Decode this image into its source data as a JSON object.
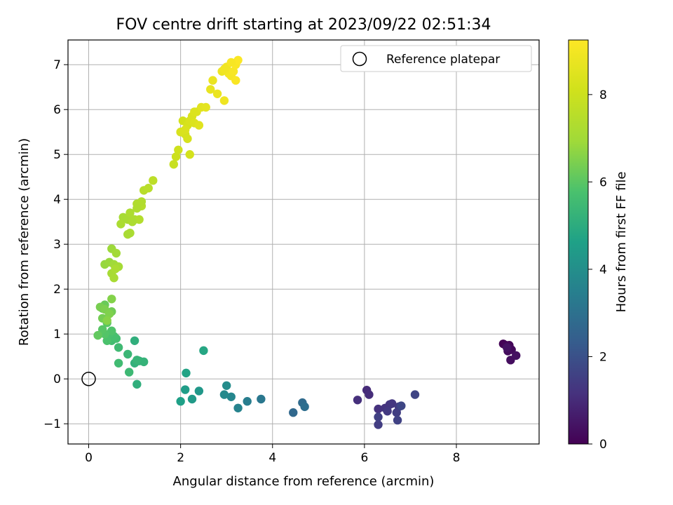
{
  "chart_data": {
    "type": "scatter",
    "title": "FOV centre drift starting at 2023/09/22 02:51:34",
    "xlabel": "Angular distance from reference (arcmin)",
    "ylabel": "Rotation from reference (arcmin)",
    "xlim": [
      -0.45,
      9.8
    ],
    "ylim": [
      -1.45,
      7.55
    ],
    "xticks": [
      0,
      2,
      4,
      6,
      8
    ],
    "yticks": [
      -1,
      0,
      1,
      2,
      3,
      4,
      5,
      6,
      7
    ],
    "grid": true,
    "legend": {
      "position": "top-right",
      "entries": [
        "Reference platepar"
      ]
    },
    "reference_point": {
      "x": 0,
      "y": 0
    },
    "colorbar": {
      "label": "Hours from first FF file",
      "min": 0,
      "max": 9.25,
      "ticks": [
        0,
        2,
        4,
        6,
        8
      ],
      "colormap": "viridis"
    },
    "series": [
      {
        "x": [
          9.02,
          9.08,
          9.15,
          9.2,
          9.12,
          9.18,
          9.3,
          9.1,
          6.05,
          6.1,
          5.85,
          6.3,
          6.45,
          6.55,
          6.6,
          6.5,
          6.75,
          6.3,
          6.7,
          6.3,
          6.72,
          7.1,
          6.8,
          4.45,
          4.65,
          4.7,
          3.75,
          3.45,
          3.25,
          3.1,
          2.95,
          3.0,
          2.4,
          2.25,
          2.1,
          2.0,
          2.12,
          2.5,
          1.05,
          1.0,
          1.1,
          1.2,
          1.05,
          0.85,
          0.88,
          0.65,
          0.65,
          0.5,
          0.6,
          0.55,
          0.45,
          0.4,
          0.5,
          0.35,
          0.3,
          0.4,
          0.2,
          0.3,
          0.35,
          0.45,
          0.5,
          0.3,
          0.25,
          0.35,
          0.45,
          0.5,
          0.4,
          0.35,
          0.45,
          0.5,
          0.55,
          0.6,
          0.65,
          0.5,
          0.55,
          0.58,
          0.75,
          0.85,
          0.9,
          0.9,
          1.0,
          1.05,
          1.1,
          1.15,
          1.2,
          1.3,
          1.4,
          0.7,
          0.95,
          1.05,
          1.15,
          1.0,
          0.85,
          1.85,
          1.9,
          1.95,
          2.0,
          2.05,
          2.1,
          2.15,
          2.2,
          2.25,
          2.3,
          2.35,
          2.4,
          2.45,
          2.55,
          2.2,
          2.15,
          2.0,
          2.3,
          2.1,
          2.65,
          2.7,
          2.8,
          2.9,
          2.95,
          3.0,
          3.05,
          3.1,
          3.15,
          3.2,
          3.25,
          2.95,
          3.1,
          3.2
        ],
        "y": [
          0.78,
          0.75,
          0.75,
          0.65,
          0.62,
          0.42,
          0.52,
          0.7,
          -0.25,
          -0.35,
          -0.47,
          -0.67,
          -0.65,
          -0.57,
          -0.55,
          -0.72,
          -0.62,
          -1.02,
          -0.75,
          -0.85,
          -0.92,
          -0.35,
          -0.6,
          -0.75,
          -0.53,
          -0.62,
          -0.45,
          -0.5,
          -0.65,
          -0.4,
          -0.35,
          -0.15,
          -0.27,
          -0.45,
          -0.24,
          -0.5,
          0.13,
          0.63,
          -0.12,
          0.35,
          0.4,
          0.38,
          0.42,
          0.55,
          0.15,
          0.7,
          0.35,
          0.85,
          0.9,
          0.95,
          1.0,
          0.85,
          1.07,
          1.0,
          1.1,
          1.25,
          0.97,
          1.57,
          1.65,
          1.45,
          1.5,
          1.35,
          1.6,
          1.55,
          1.45,
          1.78,
          1.3,
          2.55,
          2.6,
          2.9,
          2.55,
          2.8,
          2.5,
          2.35,
          2.25,
          2.45,
          3.6,
          3.55,
          3.25,
          3.7,
          3.55,
          3.9,
          3.55,
          3.85,
          4.2,
          4.25,
          4.42,
          3.45,
          3.5,
          3.8,
          3.95,
          0.85,
          3.22,
          4.78,
          4.95,
          5.1,
          5.5,
          5.75,
          5.45,
          5.65,
          5.75,
          5.85,
          5.7,
          5.95,
          5.65,
          6.05,
          6.05,
          5.0,
          5.35,
          5.5,
          5.95,
          5.55,
          6.45,
          6.65,
          6.35,
          6.85,
          6.2,
          6.95,
          6.8,
          6.75,
          6.85,
          7.0,
          7.1,
          6.9,
          7.05,
          6.65
        ],
        "hours": [
          0.05,
          0.1,
          0.15,
          0.2,
          0.25,
          0.3,
          0.35,
          0.4,
          1.0,
          1.05,
          1.1,
          1.15,
          1.2,
          1.25,
          1.3,
          1.35,
          1.4,
          1.45,
          1.5,
          1.55,
          1.6,
          1.65,
          1.7,
          2.7,
          2.8,
          2.9,
          3.2,
          3.4,
          3.6,
          3.7,
          3.8,
          3.9,
          4.3,
          4.4,
          4.5,
          4.6,
          4.7,
          4.8,
          5.1,
          5.15,
          5.2,
          5.25,
          5.3,
          5.4,
          5.45,
          5.5,
          5.55,
          5.6,
          5.65,
          5.7,
          5.75,
          5.8,
          5.85,
          5.9,
          5.95,
          6.0,
          6.1,
          6.15,
          6.2,
          6.25,
          6.3,
          6.35,
          6.4,
          6.45,
          6.5,
          6.55,
          6.6,
          6.8,
          6.85,
          6.9,
          6.95,
          7.0,
          7.05,
          7.1,
          7.15,
          7.2,
          7.1,
          7.15,
          7.2,
          7.25,
          7.3,
          7.35,
          7.4,
          7.45,
          7.5,
          7.55,
          7.6,
          7.2,
          7.25,
          7.3,
          7.35,
          5.1,
          7.15,
          7.9,
          8.0,
          8.05,
          8.1,
          8.15,
          8.2,
          8.25,
          8.3,
          8.35,
          8.4,
          8.45,
          8.5,
          8.55,
          8.6,
          8.2,
          8.25,
          8.3,
          8.4,
          8.35,
          8.7,
          8.75,
          8.8,
          8.85,
          8.9,
          8.95,
          9.0,
          9.05,
          9.1,
          9.15,
          9.2,
          8.95,
          9.1,
          9.15
        ]
      }
    ]
  }
}
